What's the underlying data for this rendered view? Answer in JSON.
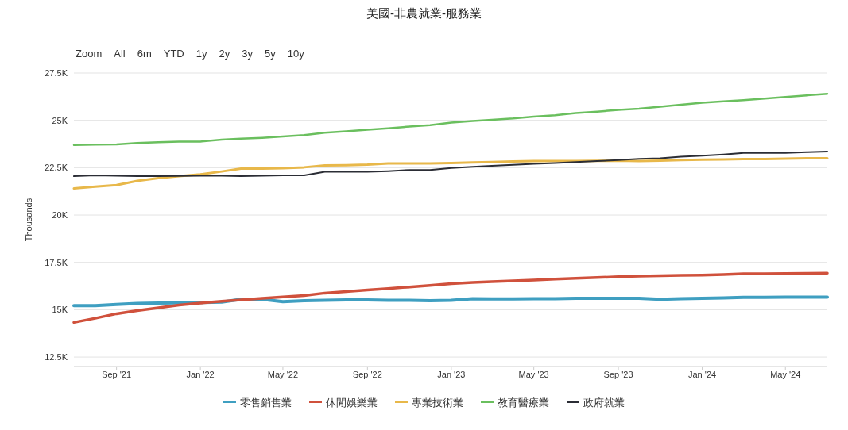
{
  "chart_data": {
    "type": "line",
    "title": "美國-非農就業-服務業",
    "ylabel": "Thousands",
    "annotations": [
      "Zoom",
      "All",
      "6m",
      "YTD",
      "1y",
      "2y",
      "3y",
      "5y",
      "10y"
    ],
    "x": [
      "2021-07",
      "2021-08",
      "2021-09",
      "2021-10",
      "2021-11",
      "2021-12",
      "2022-01",
      "2022-02",
      "2022-03",
      "2022-04",
      "2022-05",
      "2022-06",
      "2022-07",
      "2022-08",
      "2022-09",
      "2022-10",
      "2022-11",
      "2022-12",
      "2023-01",
      "2023-02",
      "2023-03",
      "2023-04",
      "2023-05",
      "2023-06",
      "2023-07",
      "2023-08",
      "2023-09",
      "2023-10",
      "2023-11",
      "2023-12",
      "2024-01",
      "2024-02",
      "2024-03",
      "2024-04",
      "2024-05",
      "2024-06",
      "2024-07"
    ],
    "series": [
      {
        "name": "零售銷售業",
        "color": "#3f9fc1",
        "values": [
          15220,
          15220,
          15280,
          15330,
          15350,
          15360,
          15380,
          15400,
          15550,
          15550,
          15420,
          15480,
          15500,
          15520,
          15520,
          15500,
          15500,
          15480,
          15500,
          15580,
          15570,
          15570,
          15580,
          15580,
          15600,
          15600,
          15600,
          15600,
          15550,
          15580,
          15600,
          15620,
          15650,
          15660,
          15670,
          15670,
          15670
        ]
      },
      {
        "name": "休閒娛樂業",
        "color": "#d0513c",
        "values": [
          14330,
          14550,
          14790,
          14950,
          15100,
          15250,
          15350,
          15450,
          15520,
          15600,
          15680,
          15750,
          15880,
          15960,
          16040,
          16120,
          16200,
          16280,
          16380,
          16440,
          16480,
          16520,
          16570,
          16620,
          16660,
          16700,
          16740,
          16780,
          16800,
          16820,
          16830,
          16860,
          16900,
          16900,
          16910,
          16920,
          16930
        ]
      },
      {
        "name": "專業技術業",
        "color": "#e8b84a",
        "values": [
          21400,
          21500,
          21580,
          21800,
          21950,
          22050,
          22150,
          22300,
          22450,
          22450,
          22470,
          22520,
          22620,
          22630,
          22660,
          22720,
          22720,
          22720,
          22750,
          22780,
          22800,
          22830,
          22850,
          22850,
          22850,
          22860,
          22870,
          22850,
          22870,
          22900,
          22920,
          22930,
          22950,
          22950,
          22980,
          23000,
          23000
        ]
      },
      {
        "name": "教育醫療業",
        "color": "#6abf5e",
        "values": [
          23700,
          23720,
          23730,
          23800,
          23850,
          23880,
          23880,
          23980,
          24030,
          24080,
          24150,
          24220,
          24350,
          24420,
          24500,
          24580,
          24670,
          24750,
          24880,
          24970,
          25030,
          25100,
          25200,
          25270,
          25380,
          25460,
          25550,
          25620,
          25720,
          25820,
          25930,
          26000,
          26070,
          26150,
          26230,
          26320,
          26400
        ]
      },
      {
        "name": "政府就業",
        "color": "#2b2d35",
        "values": [
          22050,
          22100,
          22080,
          22050,
          22050,
          22060,
          22070,
          22070,
          22050,
          22080,
          22100,
          22100,
          22280,
          22280,
          22280,
          22320,
          22380,
          22380,
          22480,
          22550,
          22600,
          22650,
          22700,
          22750,
          22800,
          22850,
          22900,
          22970,
          23000,
          23080,
          23130,
          23200,
          23280,
          23280,
          23280,
          23320,
          23350
        ]
      }
    ],
    "xlim": [
      "2021-07",
      "2024-07"
    ],
    "xticks": [
      {
        "value": "2021-09",
        "label": "Sep '21"
      },
      {
        "value": "2022-01",
        "label": "Jan '22"
      },
      {
        "value": "2022-05",
        "label": "May '22"
      },
      {
        "value": "2022-09",
        "label": "Sep '22"
      },
      {
        "value": "2023-01",
        "label": "Jan '23"
      },
      {
        "value": "2023-05",
        "label": "May '23"
      },
      {
        "value": "2023-09",
        "label": "Sep '23"
      },
      {
        "value": "2024-01",
        "label": "Jan '24"
      },
      {
        "value": "2024-05",
        "label": "May '24"
      }
    ],
    "ylim": [
      12000,
      27500
    ],
    "yticks": [
      {
        "value": 12500,
        "label": "12.5K"
      },
      {
        "value": 15000,
        "label": "15K"
      },
      {
        "value": 17500,
        "label": "17.5K"
      },
      {
        "value": 20000,
        "label": "20K"
      },
      {
        "value": 22500,
        "label": "22.5K"
      },
      {
        "value": 25000,
        "label": "25K"
      },
      {
        "value": 27500,
        "label": "27.5K"
      }
    ],
    "grid": "y",
    "legend": "bottom",
    "marker": "none",
    "line_style": "solid"
  }
}
